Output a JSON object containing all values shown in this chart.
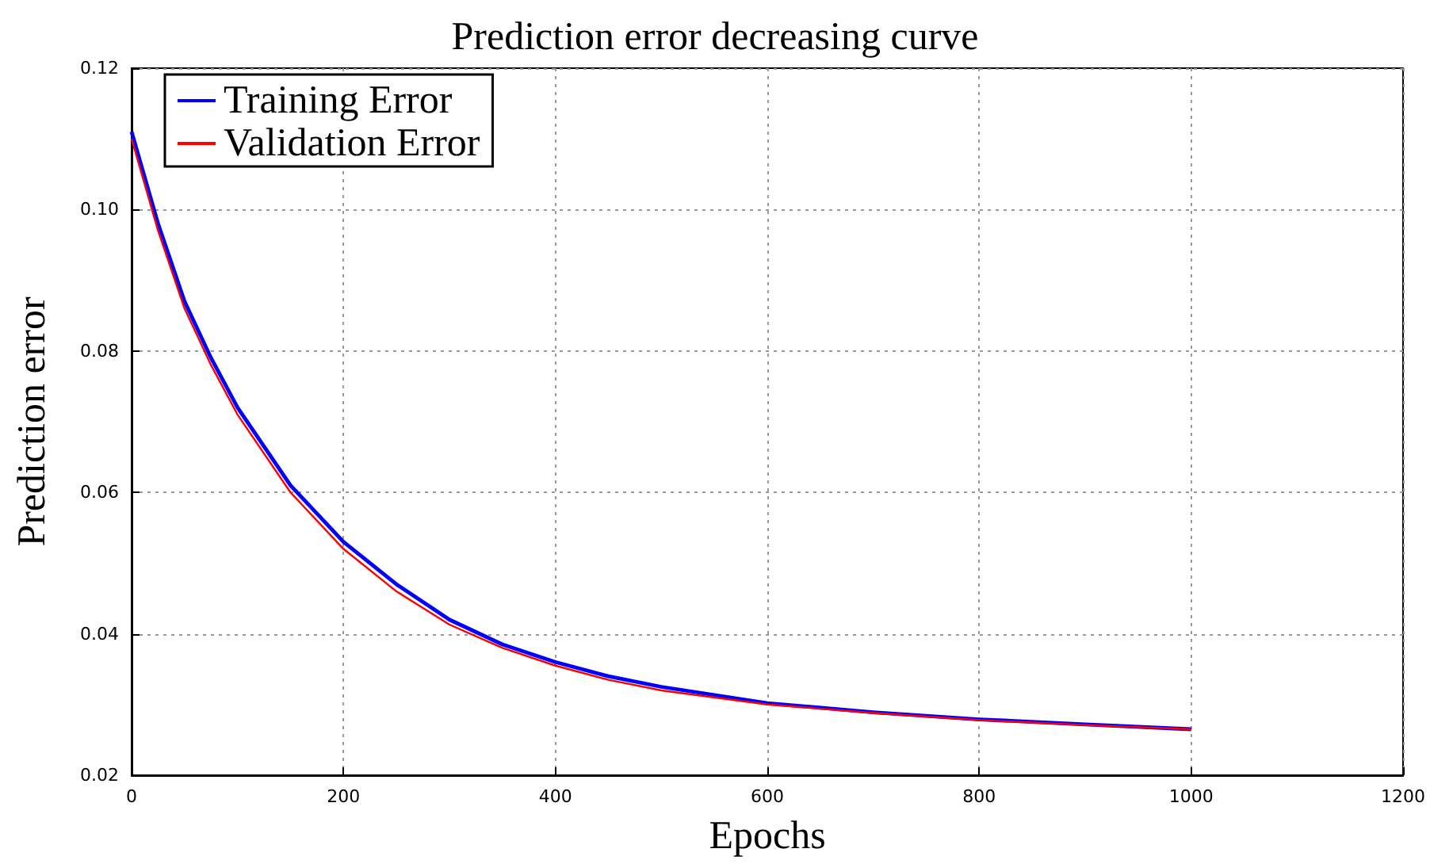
{
  "chart_data": {
    "type": "line",
    "title": "Prediction error decreasing curve",
    "xlabel": "Epochs",
    "ylabel": "Prediction error",
    "x": [
      0,
      25,
      50,
      75,
      100,
      150,
      200,
      250,
      300,
      350,
      400,
      450,
      500,
      600,
      700,
      800,
      900,
      1000
    ],
    "series": [
      {
        "name": "Training Error",
        "color": "#0000ff",
        "values": [
          0.111,
          0.098,
          0.087,
          0.079,
          0.072,
          0.061,
          0.053,
          0.047,
          0.042,
          0.0385,
          0.036,
          0.034,
          0.0325,
          0.0302,
          0.0289,
          0.0279,
          0.0272,
          0.0265
        ]
      },
      {
        "name": "Validation Error",
        "color": "#ff0000",
        "values": [
          0.11,
          0.097,
          0.086,
          0.078,
          0.071,
          0.06,
          0.052,
          0.046,
          0.0413,
          0.038,
          0.0355,
          0.0335,
          0.032,
          0.03,
          0.0288,
          0.0278,
          0.0271,
          0.0265
        ]
      }
    ],
    "xlim": [
      0,
      1200
    ],
    "xticks": [
      0,
      200,
      400,
      600,
      800,
      1000,
      1200
    ],
    "ylim": [
      0.02,
      0.12
    ],
    "yticks": [
      {
        "value": 0.02,
        "label": "0.02"
      },
      {
        "value": 0.04,
        "label": "0.04"
      },
      {
        "value": 0.06,
        "label": "0.06"
      },
      {
        "value": 0.08,
        "label": "0.08"
      },
      {
        "value": 0.1,
        "label": "0.10"
      },
      {
        "value": 0.12,
        "label": "0.12"
      }
    ],
    "grid": true,
    "legend": "top left",
    "marker": "none",
    "line_style": "solid"
  }
}
